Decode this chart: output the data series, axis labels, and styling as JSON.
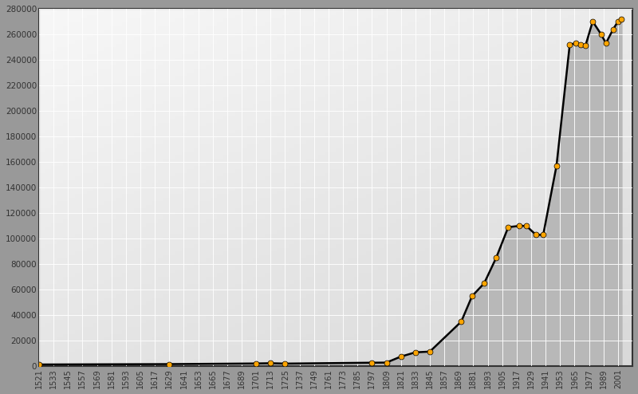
{
  "years": [
    1521,
    1629,
    1701,
    1713,
    1725,
    1797,
    1809,
    1821,
    1833,
    1845,
    1871,
    1880,
    1890,
    1900,
    1910,
    1919,
    1925,
    1933,
    1939,
    1950,
    1961,
    1966,
    1970,
    1974,
    1980,
    1987,
    1991,
    1997,
    2001,
    2004
  ],
  "populations": [
    1500,
    1800,
    2300,
    2500,
    2200,
    2900,
    3000,
    7700,
    11000,
    11600,
    35000,
    55000,
    65000,
    85000,
    109000,
    110000,
    110000,
    103000,
    103000,
    157000,
    252000,
    253000,
    252000,
    251000,
    270000,
    260000,
    253000,
    264000,
    270000,
    272000
  ],
  "x_ticks": [
    1521,
    1533,
    1545,
    1557,
    1569,
    1581,
    1593,
    1605,
    1617,
    1629,
    1641,
    1653,
    1665,
    1677,
    1689,
    1701,
    1713,
    1725,
    1737,
    1749,
    1761,
    1773,
    1785,
    1797,
    1809,
    1821,
    1833,
    1845,
    1857,
    1869,
    1881,
    1893,
    1905,
    1917,
    1929,
    1941,
    1953,
    1965,
    1977,
    1989,
    2001
  ],
  "y_ticks": [
    0,
    20000,
    40000,
    60000,
    80000,
    100000,
    120000,
    140000,
    160000,
    180000,
    200000,
    220000,
    240000,
    260000,
    280000
  ],
  "xlim": [
    1521,
    2013
  ],
  "ylim": [
    0,
    280000
  ],
  "line_color": "#000000",
  "marker_facecolor": "#FFA500",
  "marker_edgecolor": "#000000",
  "fill_color": "#bbbbbb",
  "bg_light": "#f0f0f0",
  "bg_dark": "#aaaaaa",
  "outer_bg": "#999999",
  "grid_color": "#cccccc",
  "figsize": [
    8.0,
    4.94
  ],
  "dpi": 100
}
